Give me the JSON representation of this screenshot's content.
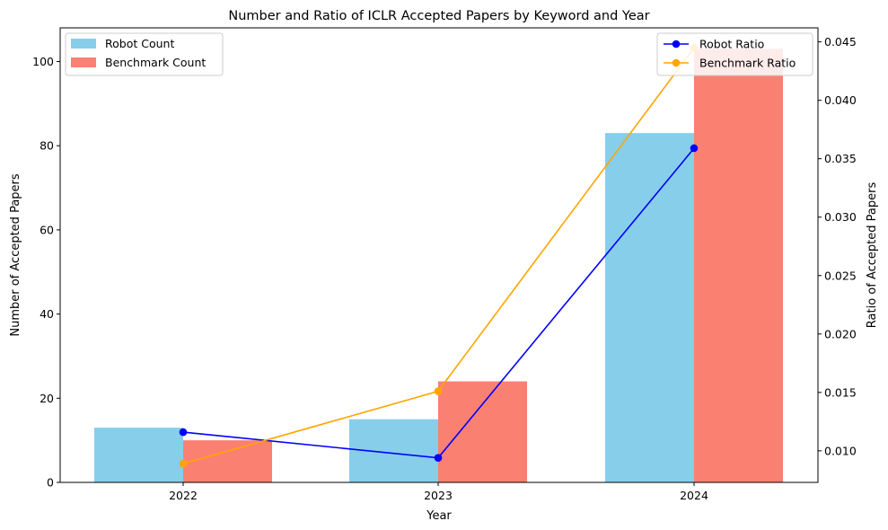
{
  "chart_data": {
    "type": "bar",
    "title": "Number and Ratio of ICLR Accepted Papers by Keyword and Year",
    "xlabel": "Year",
    "ylabel": "Number of Accepted Papers",
    "y2label": "Ratio of Accepted Papers",
    "categories": [
      "2022",
      "2023",
      "2024"
    ],
    "ylim": [
      0,
      108
    ],
    "y2lim": [
      0.0073,
      0.0462
    ],
    "yticks": [
      "0",
      "20",
      "40",
      "60",
      "80",
      "100"
    ],
    "y2ticks": [
      "0.010",
      "0.015",
      "0.020",
      "0.025",
      "0.030",
      "0.035",
      "0.040",
      "0.045"
    ],
    "grid": false,
    "bar_series": [
      {
        "name": "Robot Count",
        "values": [
          13,
          15,
          83
        ],
        "color": "#87ceeb"
      },
      {
        "name": "Benchmark Count",
        "values": [
          10,
          24,
          103
        ],
        "color": "#fa8072"
      }
    ],
    "line_series": [
      {
        "name": "Robot Ratio",
        "values": [
          0.0116,
          0.0094,
          0.0359
        ],
        "color": "#0000ff"
      },
      {
        "name": "Benchmark Ratio",
        "values": [
          0.0089,
          0.0151,
          0.0445
        ],
        "color": "#ffa500"
      }
    ],
    "legend_left_placement": "upper-left",
    "legend_right_placement": "upper-right"
  }
}
